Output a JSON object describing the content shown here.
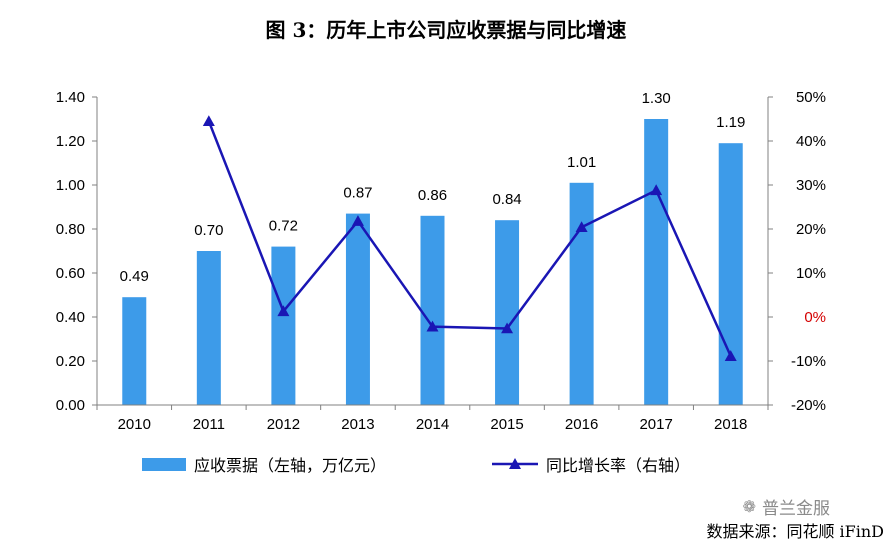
{
  "title": "图 3：历年上市公司应收票据与同比增速",
  "watermark": "普兰金服",
  "watermark_icon": "wechat-icon",
  "source": "数据来源：同花顺 iFinD",
  "colors": {
    "bar": "#3d9be9",
    "line": "#1a16b4",
    "zero_label": "#d40000",
    "axis": "#808080"
  },
  "chart_data": {
    "type": "bar",
    "categories": [
      "2010",
      "2011",
      "2012",
      "2013",
      "2014",
      "2015",
      "2016",
      "2017",
      "2018"
    ],
    "series": [
      {
        "name": "应收票据（左轴，万亿元）",
        "type": "bar",
        "axis": "left",
        "values": [
          0.49,
          0.7,
          0.72,
          0.87,
          0.86,
          0.84,
          1.01,
          1.3,
          1.19
        ],
        "labels": [
          "0.49",
          "0.70",
          "0.72",
          "0.87",
          "0.86",
          "0.84",
          "1.01",
          "1.30",
          "1.19"
        ]
      },
      {
        "name": "同比增长率（右轴）",
        "type": "line",
        "axis": "right",
        "marker": "triangle",
        "values": [
          null,
          44.5,
          1.3,
          21.8,
          -2.2,
          -2.6,
          20.4,
          28.8,
          -8.9
        ]
      }
    ],
    "y_left": {
      "ylim": [
        0,
        1.4
      ],
      "ticks": [
        "0.00",
        "0.20",
        "0.40",
        "0.60",
        "0.80",
        "1.00",
        "1.20",
        "1.40"
      ]
    },
    "y_right": {
      "ylim": [
        -20,
        50
      ],
      "ticks": [
        "-20%",
        "-10%",
        "0%",
        "10%",
        "20%",
        "30%",
        "40%",
        "50%"
      ]
    },
    "grid": false,
    "legend": "bottom"
  }
}
